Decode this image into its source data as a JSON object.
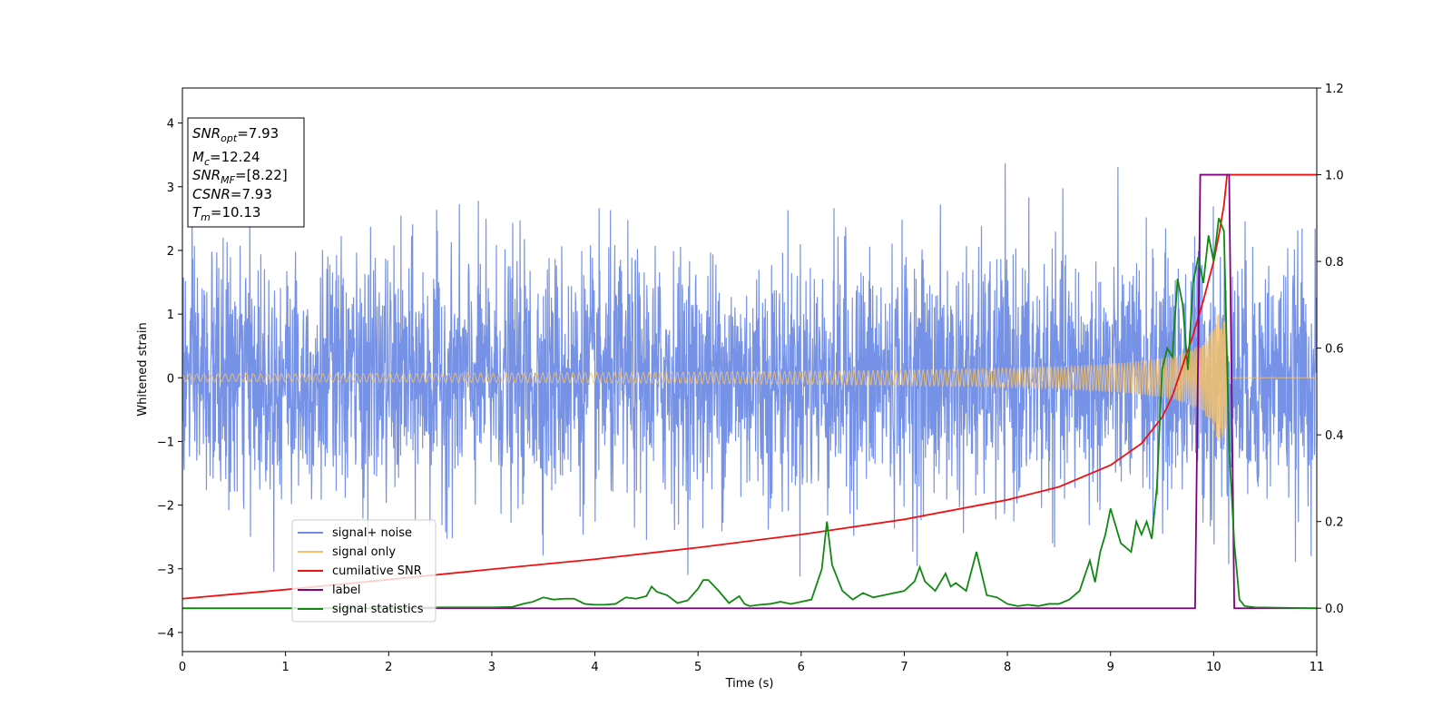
{
  "chart_data": {
    "type": "line",
    "xlabel": "Time (s)",
    "ylabel": "Whitened strain",
    "xlim": [
      0,
      11
    ],
    "ylim_left": [
      -4.3,
      4.55
    ],
    "ylim_right": [
      -0.1,
      1.2
    ],
    "x_ticks": [
      "0",
      "1",
      "2",
      "3",
      "4",
      "5",
      "6",
      "7",
      "8",
      "9",
      "10",
      "11"
    ],
    "y_ticks_left": [
      "−4",
      "−3",
      "−2",
      "−1",
      "0",
      "1",
      "2",
      "3",
      "4"
    ],
    "y_ticks_right": [
      "0.0",
      "0.2",
      "0.4",
      "0.6",
      "0.8",
      "1.0",
      "1.2"
    ],
    "grid": false,
    "legend_position": "lower-left",
    "colors": {
      "noise": "#6f8ce6",
      "signal": "#f5c26b",
      "csnr": "#ee1111",
      "label": "#800080",
      "stats": "#118811"
    },
    "info_box": {
      "snr_opt": {
        "base": "SNR",
        "sub": "opt",
        "value": "=7.93"
      },
      "mc": {
        "base": "M",
        "sub": "c",
        "value": "=12.24"
      },
      "snr_mf": {
        "base": "SNR",
        "sub": "MF",
        "value": "=[8.22]"
      },
      "csnr": {
        "base": "CSNR",
        "value": "=7.93"
      },
      "tm": {
        "base": "T",
        "sub": "m",
        "value": "=10.13"
      }
    },
    "series": [
      {
        "name": "signal+ noise",
        "axis": "left",
        "description_only": false,
        "sigma": 1.0,
        "t_range": [
          0,
          11
        ]
      },
      {
        "name": "signal only",
        "axis": "left",
        "merger_time": 10.13,
        "peak_amplitude": 1.0
      },
      {
        "name": "cumilative SNR",
        "axis": "right",
        "x": [
          0,
          1,
          2,
          3,
          4,
          5,
          6,
          7,
          8,
          8.5,
          9,
          9.3,
          9.5,
          9.6,
          9.7,
          9.8,
          9.9,
          10.0,
          10.05,
          10.1,
          10.13,
          10.2,
          11
        ],
        "y": [
          0.022,
          0.043,
          0.066,
          0.09,
          0.113,
          0.14,
          0.17,
          0.205,
          0.25,
          0.28,
          0.33,
          0.38,
          0.44,
          0.49,
          0.56,
          0.63,
          0.71,
          0.8,
          0.86,
          0.93,
          1.0,
          1.0,
          1.0
        ]
      },
      {
        "name": "label",
        "axis": "right",
        "x": [
          0,
          9.82,
          9.87,
          10.15,
          10.2,
          11
        ],
        "y": [
          0,
          0,
          1,
          1,
          0,
          0
        ]
      },
      {
        "name": "signal statistics",
        "axis": "right",
        "x": [
          0,
          1,
          2,
          2.5,
          3,
          3.2,
          3.3,
          3.4,
          3.5,
          3.6,
          3.7,
          3.8,
          3.9,
          4.0,
          4.1,
          4.2,
          4.3,
          4.4,
          4.5,
          4.55,
          4.6,
          4.7,
          4.8,
          4.9,
          5.0,
          5.05,
          5.1,
          5.2,
          5.3,
          5.4,
          5.45,
          5.5,
          5.6,
          5.7,
          5.8,
          5.9,
          6.0,
          6.1,
          6.2,
          6.25,
          6.3,
          6.35,
          6.4,
          6.5,
          6.6,
          6.7,
          6.8,
          6.9,
          7.0,
          7.1,
          7.15,
          7.2,
          7.3,
          7.4,
          7.45,
          7.5,
          7.6,
          7.65,
          7.7,
          7.75,
          7.8,
          7.9,
          8.0,
          8.1,
          8.2,
          8.3,
          8.4,
          8.5,
          8.6,
          8.7,
          8.8,
          8.85,
          8.9,
          8.95,
          9.0,
          9.1,
          9.2,
          9.25,
          9.3,
          9.35,
          9.4,
          9.45,
          9.5,
          9.55,
          9.6,
          9.65,
          9.7,
          9.75,
          9.8,
          9.85,
          9.9,
          9.95,
          10.0,
          10.05,
          10.1,
          10.15,
          10.2,
          10.25,
          10.3,
          10.4,
          11
        ],
        "y": [
          0.0,
          0.0,
          0.0,
          0.002,
          0.002,
          0.003,
          0.01,
          0.015,
          0.025,
          0.02,
          0.022,
          0.022,
          0.01,
          0.008,
          0.008,
          0.01,
          0.025,
          0.022,
          0.028,
          0.05,
          0.038,
          0.03,
          0.012,
          0.018,
          0.045,
          0.065,
          0.065,
          0.04,
          0.012,
          0.028,
          0.01,
          0.005,
          0.008,
          0.01,
          0.015,
          0.01,
          0.015,
          0.02,
          0.09,
          0.2,
          0.1,
          0.07,
          0.04,
          0.02,
          0.035,
          0.025,
          0.03,
          0.035,
          0.04,
          0.062,
          0.095,
          0.062,
          0.04,
          0.08,
          0.05,
          0.058,
          0.04,
          0.085,
          0.13,
          0.08,
          0.03,
          0.025,
          0.01,
          0.005,
          0.008,
          0.005,
          0.01,
          0.01,
          0.02,
          0.04,
          0.11,
          0.06,
          0.13,
          0.17,
          0.23,
          0.15,
          0.13,
          0.2,
          0.17,
          0.2,
          0.16,
          0.28,
          0.55,
          0.6,
          0.58,
          0.76,
          0.7,
          0.55,
          0.75,
          0.81,
          0.75,
          0.86,
          0.8,
          0.9,
          0.87,
          0.37,
          0.15,
          0.02,
          0.005,
          0.002,
          0.0
        ]
      }
    ]
  }
}
